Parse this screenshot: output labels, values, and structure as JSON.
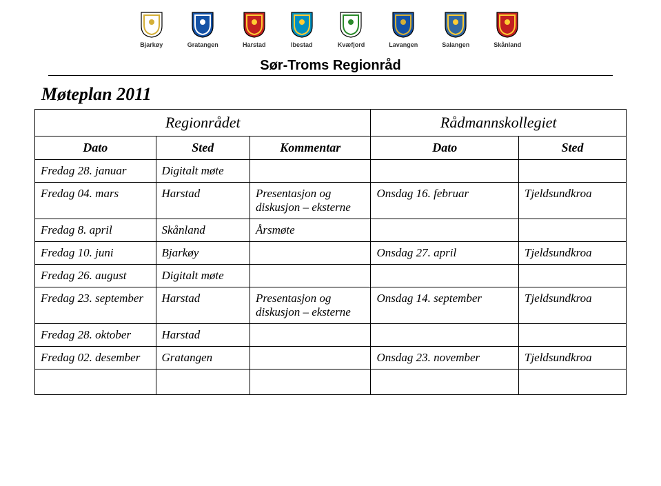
{
  "header": {
    "org_title": "Sør-Troms Regionråd",
    "municipalities": [
      {
        "label": "Bjarkøy",
        "colors": {
          "bg": "#ffffff",
          "stroke": "#000000",
          "accent": "#d4af37"
        }
      },
      {
        "label": "Gratangen",
        "colors": {
          "bg": "#1452a6",
          "stroke": "#000000",
          "accent": "#ffffff"
        }
      },
      {
        "label": "Harstad",
        "colors": {
          "bg": "#c22020",
          "stroke": "#000000",
          "accent": "#ffcc33"
        }
      },
      {
        "label": "Ibestad",
        "colors": {
          "bg": "#008fbf",
          "stroke": "#000000",
          "accent": "#ffcc33"
        }
      },
      {
        "label": "Kvæfjord",
        "colors": {
          "bg": "#ffffff",
          "stroke": "#000000",
          "accent": "#2b8a2b"
        }
      },
      {
        "label": "Lavangen",
        "colors": {
          "bg": "#1452a6",
          "stroke": "#000000",
          "accent": "#d4af37"
        }
      },
      {
        "label": "Salangen",
        "colors": {
          "bg": "#3368a0",
          "stroke": "#000000",
          "accent": "#ffcc33"
        }
      },
      {
        "label": "Skånland",
        "colors": {
          "bg": "#c22020",
          "stroke": "#000000",
          "accent": "#ffcc33"
        }
      }
    ]
  },
  "page": {
    "title": "Møteplan 2011"
  },
  "table": {
    "group_left": "Regionrådet",
    "group_right": "Rådmannskollegiet",
    "cols_left": [
      "Dato",
      "Sted",
      "Kommentar"
    ],
    "cols_right": [
      "Dato",
      "Sted"
    ],
    "rows": [
      {
        "l_date": "Fredag 28. januar",
        "l_sted": "Digitalt møte",
        "l_komm": "",
        "r_date": "",
        "r_sted": ""
      },
      {
        "l_date": "Fredag 04. mars",
        "l_sted": "Harstad",
        "l_komm": "Presentasjon og diskusjon – eksterne",
        "r_date": "Onsdag 16. februar",
        "r_sted": "Tjeldsundkroa"
      },
      {
        "l_date": "Fredag 8. april",
        "l_sted": "Skånland",
        "l_komm": "Årsmøte",
        "r_date": "",
        "r_sted": ""
      },
      {
        "l_date": "Fredag 10. juni",
        "l_sted": "Bjarkøy",
        "l_komm": "",
        "r_date": "Onsdag 27. april",
        "r_sted": "Tjeldsundkroa"
      },
      {
        "l_date": "Fredag 26. august",
        "l_sted": "Digitalt møte",
        "l_komm": "",
        "r_date": "",
        "r_sted": ""
      },
      {
        "l_date": "Fredag 23. september",
        "l_sted": "Harstad",
        "l_komm": "Presentasjon og diskusjon – eksterne",
        "r_date": "Onsdag 14. september",
        "r_sted": "Tjeldsundkroa"
      },
      {
        "l_date": "Fredag 28. oktober",
        "l_sted": "Harstad",
        "l_komm": "",
        "r_date": "",
        "r_sted": ""
      },
      {
        "l_date": "Fredag 02. desember",
        "l_sted": "Gratangen",
        "l_komm": "",
        "r_date": "Onsdag 23. november",
        "r_sted": "Tjeldsundkroa"
      }
    ]
  }
}
